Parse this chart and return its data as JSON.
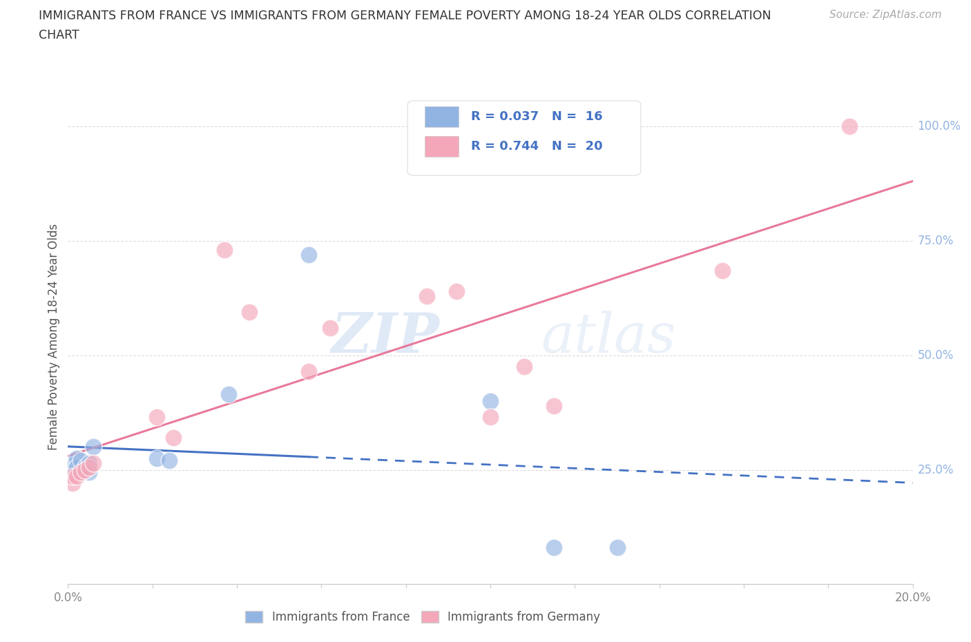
{
  "title_line1": "IMMIGRANTS FROM FRANCE VS IMMIGRANTS FROM GERMANY FEMALE POVERTY AMONG 18-24 YEAR OLDS CORRELATION",
  "title_line2": "CHART",
  "source": "Source: ZipAtlas.com",
  "ylabel": "Female Poverty Among 18-24 Year Olds",
  "xlim": [
    0.0,
    0.2
  ],
  "ylim": [
    0.0,
    1.05
  ],
  "france_color": "#92b4e3",
  "germany_color": "#f4a7b9",
  "france_line_color": "#4472c4",
  "germany_line_color": "#e8799a",
  "france_R": 0.037,
  "france_N": 16,
  "germany_R": 0.744,
  "germany_N": 20,
  "france_x": [
    0.001,
    0.001,
    0.002,
    0.002,
    0.003,
    0.004,
    0.005,
    0.005,
    0.006,
    0.021,
    0.024,
    0.038,
    0.057,
    0.1,
    0.115,
    0.13
  ],
  "france_y": [
    0.245,
    0.26,
    0.275,
    0.255,
    0.27,
    0.255,
    0.265,
    0.245,
    0.3,
    0.275,
    0.27,
    0.415,
    0.72,
    0.4,
    0.08,
    0.08
  ],
  "germany_x": [
    0.001,
    0.001,
    0.002,
    0.003,
    0.004,
    0.005,
    0.006,
    0.021,
    0.025,
    0.037,
    0.043,
    0.057,
    0.062,
    0.085,
    0.092,
    0.1,
    0.108,
    0.115,
    0.155,
    0.185
  ],
  "germany_y": [
    0.22,
    0.235,
    0.235,
    0.245,
    0.25,
    0.255,
    0.265,
    0.365,
    0.32,
    0.73,
    0.595,
    0.465,
    0.56,
    0.63,
    0.64,
    0.365,
    0.475,
    0.39,
    0.685,
    1.0
  ],
  "france_scatter_size": 320,
  "germany_scatter_size": 320,
  "background_color": "#ffffff",
  "grid_color": "#dddddd",
  "france_trendline_xstart": 0.0,
  "france_trendline_xend_solid": 0.057,
  "france_trendline_xend_dashed": 0.2,
  "germany_trendline_xstart": 0.0,
  "germany_trendline_xend": 0.2
}
